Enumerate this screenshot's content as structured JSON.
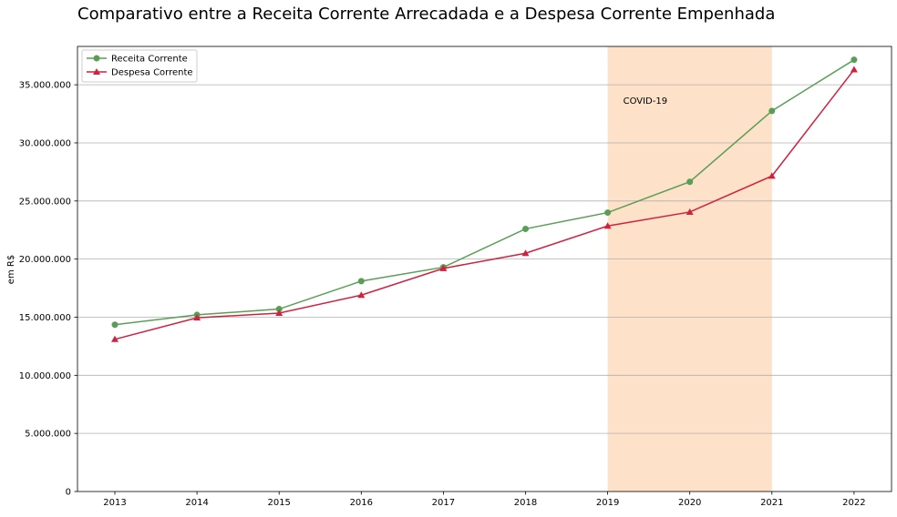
{
  "chart_data": {
    "type": "line",
    "title": "Comparativo entre a Receita Corrente Arrecadada e a Despesa Corrente Empenhada",
    "xlabel": "",
    "ylabel": "em R$",
    "x": [
      "2013",
      "2014",
      "2015",
      "2016",
      "2017",
      "2018",
      "2019",
      "2020",
      "2021",
      "2022"
    ],
    "series": [
      {
        "name": "Receita Corrente",
        "color": "#5a9e55",
        "marker": "circle",
        "values": [
          14350000,
          15200000,
          15700000,
          18100000,
          19300000,
          22600000,
          24000000,
          26650000,
          32750000,
          37150000
        ]
      },
      {
        "name": "Despesa Corrente",
        "color": "#d0213f",
        "marker": "triangle",
        "values": [
          13100000,
          14950000,
          15350000,
          16900000,
          19200000,
          20500000,
          22850000,
          24050000,
          27150000,
          36300000
        ]
      }
    ],
    "ylim": [
      0,
      38300000
    ],
    "yticks": [
      0,
      5000000,
      10000000,
      15000000,
      20000000,
      25000000,
      30000000,
      35000000
    ],
    "ytick_labels": [
      "0",
      "5.000.000",
      "10.000.000",
      "15.000.000",
      "20.000.000",
      "25.000.000",
      "30.000.000",
      "35.000.000"
    ],
    "grid": "horizontal",
    "legend_position": "top-left",
    "shaded_region": {
      "from": "2019",
      "to": "2021",
      "label": "COVID-19",
      "color": "#fde1c9"
    }
  }
}
